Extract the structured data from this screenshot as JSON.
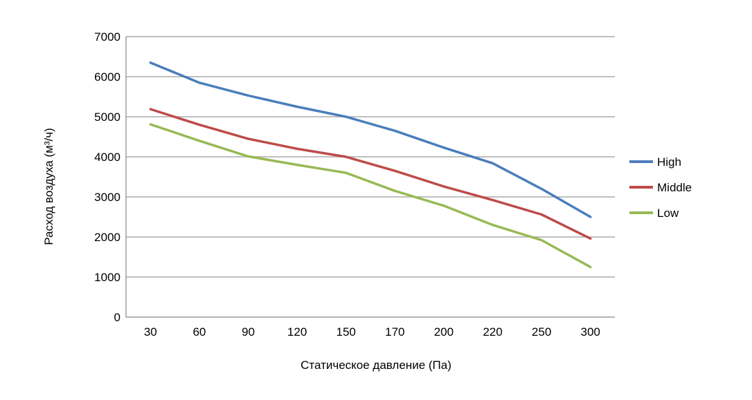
{
  "chart_data": {
    "type": "line",
    "title": "",
    "xlabel": "Статическое давление (Па)",
    "ylabel": "Расход воздуха (м³/ч)",
    "categories": [
      "30",
      "60",
      "90",
      "120",
      "150",
      "170",
      "200",
      "220",
      "250",
      "300"
    ],
    "ylim": [
      0,
      7000
    ],
    "yticks": [
      0,
      1000,
      2000,
      3000,
      4000,
      5000,
      6000,
      7000
    ],
    "grid": true,
    "legend_position": "right",
    "series": [
      {
        "name": "High",
        "color": "#4a7ebb",
        "values": [
          6350,
          5850,
          5530,
          5250,
          5000,
          4650,
          4230,
          3840,
          3200,
          2500
        ]
      },
      {
        "name": "Middle",
        "color": "#be4b48",
        "values": [
          5190,
          4800,
          4450,
          4200,
          4000,
          3650,
          3260,
          2920,
          2560,
          1960
        ]
      },
      {
        "name": "Low",
        "color": "#98b954",
        "values": [
          4810,
          4400,
          4010,
          3800,
          3600,
          3150,
          2780,
          2300,
          1920,
          1250
        ]
      }
    ]
  }
}
